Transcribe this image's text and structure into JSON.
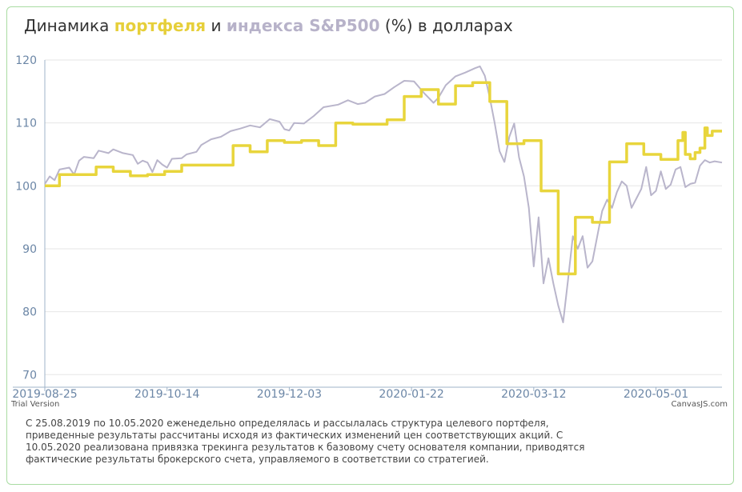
{
  "title": {
    "part1": "Динамика ",
    "portfolio": "портфеля",
    "part2": " и ",
    "index": "индекса S&P500",
    "part3": " (%) в долларах"
  },
  "watermark_left": "Trial Version",
  "watermark_right": "CanvasJS.com",
  "note": "С 25.08.2019 по 10.05.2020 еженедельно определялась и рассылалась структура целевого портфеля, приведенные результаты рассчитаны исходя из фактических изменений цен соответствующих акций. С 10.05.2020 реализована привязка трекинга результатов к базовому счету основателя компании, приводятся фактические результаты брокерского счета, управляемого в соответствии со стратегией.",
  "colors": {
    "portfolio": "#e8d53c",
    "index": "#b9b5cb",
    "axis": "#6b86a6",
    "grid": "#e6e6e6"
  },
  "chart_data": {
    "type": "line",
    "x_type": "date",
    "xlim": [
      "2019-08-25",
      "2020-05-28"
    ],
    "ylim": [
      68,
      120
    ],
    "y_ticks": [
      70,
      80,
      90,
      100,
      110,
      120
    ],
    "x_ticks": [
      "2019-08-25",
      "2019-10-14",
      "2019-12-03",
      "2020-01-22",
      "2020-03-12",
      "2020-05-01"
    ],
    "grid": true,
    "series": [
      {
        "key": "portfolio",
        "color": "#e8d53c",
        "step": true,
        "points": [
          [
            "2019-08-25",
            100.0
          ],
          [
            "2019-08-31",
            101.8
          ],
          [
            "2019-09-15",
            103.0
          ],
          [
            "2019-09-22",
            102.3
          ],
          [
            "2019-09-29",
            101.6
          ],
          [
            "2019-10-06",
            101.8
          ],
          [
            "2019-10-13",
            102.3
          ],
          [
            "2019-10-20",
            103.3
          ],
          [
            "2019-11-10",
            106.4
          ],
          [
            "2019-11-17",
            105.4
          ],
          [
            "2019-11-24",
            107.2
          ],
          [
            "2019-12-01",
            106.9
          ],
          [
            "2019-12-08",
            107.2
          ],
          [
            "2019-12-15",
            106.4
          ],
          [
            "2019-12-22",
            110.0
          ],
          [
            "2019-12-29",
            109.8
          ],
          [
            "2020-01-12",
            110.5
          ],
          [
            "2020-01-19",
            114.2
          ],
          [
            "2020-01-26",
            115.3
          ],
          [
            "2020-02-02",
            113.0
          ],
          [
            "2020-02-09",
            115.9
          ],
          [
            "2020-02-16",
            116.4
          ],
          [
            "2020-02-23",
            113.4
          ],
          [
            "2020-03-01",
            106.7
          ],
          [
            "2020-03-08",
            107.2
          ],
          [
            "2020-03-15",
            99.2
          ],
          [
            "2020-03-22",
            86.0
          ],
          [
            "2020-03-29",
            95.0
          ],
          [
            "2020-04-05",
            94.2
          ],
          [
            "2020-04-12",
            103.8
          ],
          [
            "2020-04-19",
            106.7
          ],
          [
            "2020-04-26",
            105.0
          ],
          [
            "2020-05-03",
            104.2
          ],
          [
            "2020-05-10",
            107.2
          ],
          [
            "2020-05-12",
            108.5
          ],
          [
            "2020-05-13",
            105.0
          ],
          [
            "2020-05-15",
            104.3
          ],
          [
            "2020-05-17",
            105.3
          ],
          [
            "2020-05-19",
            106.0
          ],
          [
            "2020-05-21",
            109.2
          ],
          [
            "2020-05-22",
            108.0
          ],
          [
            "2020-05-24",
            108.7
          ],
          [
            "2020-05-28",
            108.7
          ]
        ]
      },
      {
        "key": "index",
        "color": "#b9b5cb",
        "step": false,
        "points": [
          [
            "2019-08-25",
            100.3
          ],
          [
            "2019-08-27",
            101.5
          ],
          [
            "2019-08-29",
            100.9
          ],
          [
            "2019-08-31",
            102.6
          ],
          [
            "2019-09-04",
            102.9
          ],
          [
            "2019-09-06",
            101.8
          ],
          [
            "2019-09-08",
            104.0
          ],
          [
            "2019-09-10",
            104.6
          ],
          [
            "2019-09-14",
            104.4
          ],
          [
            "2019-09-16",
            105.6
          ],
          [
            "2019-09-20",
            105.2
          ],
          [
            "2019-09-22",
            105.8
          ],
          [
            "2019-09-26",
            105.2
          ],
          [
            "2019-09-30",
            104.9
          ],
          [
            "2019-10-02",
            103.5
          ],
          [
            "2019-10-04",
            104.0
          ],
          [
            "2019-10-06",
            103.7
          ],
          [
            "2019-10-08",
            102.2
          ],
          [
            "2019-10-10",
            104.1
          ],
          [
            "2019-10-12",
            103.4
          ],
          [
            "2019-10-14",
            102.9
          ],
          [
            "2019-10-16",
            104.3
          ],
          [
            "2019-10-20",
            104.4
          ],
          [
            "2019-10-22",
            105.0
          ],
          [
            "2019-10-26",
            105.4
          ],
          [
            "2019-10-28",
            106.5
          ],
          [
            "2019-11-01",
            107.4
          ],
          [
            "2019-11-05",
            107.8
          ],
          [
            "2019-11-09",
            108.7
          ],
          [
            "2019-11-13",
            109.1
          ],
          [
            "2019-11-17",
            109.6
          ],
          [
            "2019-11-21",
            109.3
          ],
          [
            "2019-11-25",
            110.6
          ],
          [
            "2019-11-29",
            110.2
          ],
          [
            "2019-12-01",
            109.0
          ],
          [
            "2019-12-03",
            108.8
          ],
          [
            "2019-12-05",
            110.0
          ],
          [
            "2019-12-09",
            109.9
          ],
          [
            "2019-12-13",
            111.1
          ],
          [
            "2019-12-17",
            112.5
          ],
          [
            "2019-12-23",
            112.9
          ],
          [
            "2019-12-27",
            113.6
          ],
          [
            "2019-12-31",
            113.0
          ],
          [
            "2020-01-03",
            113.2
          ],
          [
            "2020-01-07",
            114.2
          ],
          [
            "2020-01-11",
            114.6
          ],
          [
            "2020-01-15",
            115.7
          ],
          [
            "2020-01-19",
            116.7
          ],
          [
            "2020-01-23",
            116.6
          ],
          [
            "2020-01-27",
            114.8
          ],
          [
            "2020-01-31",
            113.2
          ],
          [
            "2020-02-02",
            114.0
          ],
          [
            "2020-02-05",
            116.0
          ],
          [
            "2020-02-09",
            117.4
          ],
          [
            "2020-02-13",
            118.0
          ],
          [
            "2020-02-17",
            118.7
          ],
          [
            "2020-02-19",
            119.0
          ],
          [
            "2020-02-21",
            117.5
          ],
          [
            "2020-02-23",
            114.0
          ],
          [
            "2020-02-25",
            110.0
          ],
          [
            "2020-02-27",
            105.5
          ],
          [
            "2020-02-29",
            103.8
          ],
          [
            "2020-03-02",
            107.8
          ],
          [
            "2020-03-04",
            109.9
          ],
          [
            "2020-03-06",
            104.5
          ],
          [
            "2020-03-08",
            101.5
          ],
          [
            "2020-03-10",
            96.5
          ],
          [
            "2020-03-12",
            87.2
          ],
          [
            "2020-03-14",
            95.0
          ],
          [
            "2020-03-16",
            84.5
          ],
          [
            "2020-03-18",
            88.5
          ],
          [
            "2020-03-20",
            84.5
          ],
          [
            "2020-03-22",
            81.0
          ],
          [
            "2020-03-24",
            78.3
          ],
          [
            "2020-03-26",
            85.0
          ],
          [
            "2020-03-28",
            92.0
          ],
          [
            "2020-03-30",
            90.0
          ],
          [
            "2020-04-01",
            92.0
          ],
          [
            "2020-04-03",
            87.0
          ],
          [
            "2020-04-05",
            88.0
          ],
          [
            "2020-04-07",
            92.0
          ],
          [
            "2020-04-09",
            96.0
          ],
          [
            "2020-04-11",
            97.8
          ],
          [
            "2020-04-13",
            96.5
          ],
          [
            "2020-04-15",
            99.0
          ],
          [
            "2020-04-17",
            100.7
          ],
          [
            "2020-04-19",
            100.0
          ],
          [
            "2020-04-21",
            96.5
          ],
          [
            "2020-04-23",
            98.0
          ],
          [
            "2020-04-25",
            99.5
          ],
          [
            "2020-04-27",
            103.0
          ],
          [
            "2020-04-29",
            98.5
          ],
          [
            "2020-05-01",
            99.2
          ],
          [
            "2020-05-03",
            102.3
          ],
          [
            "2020-05-05",
            99.5
          ],
          [
            "2020-05-07",
            100.2
          ],
          [
            "2020-05-09",
            102.6
          ],
          [
            "2020-05-11",
            103.0
          ],
          [
            "2020-05-13",
            99.8
          ],
          [
            "2020-05-15",
            100.3
          ],
          [
            "2020-05-17",
            100.5
          ],
          [
            "2020-05-19",
            103.2
          ],
          [
            "2020-05-21",
            104.1
          ],
          [
            "2020-05-23",
            103.7
          ],
          [
            "2020-05-25",
            103.9
          ],
          [
            "2020-05-28",
            103.7
          ]
        ]
      }
    ]
  }
}
